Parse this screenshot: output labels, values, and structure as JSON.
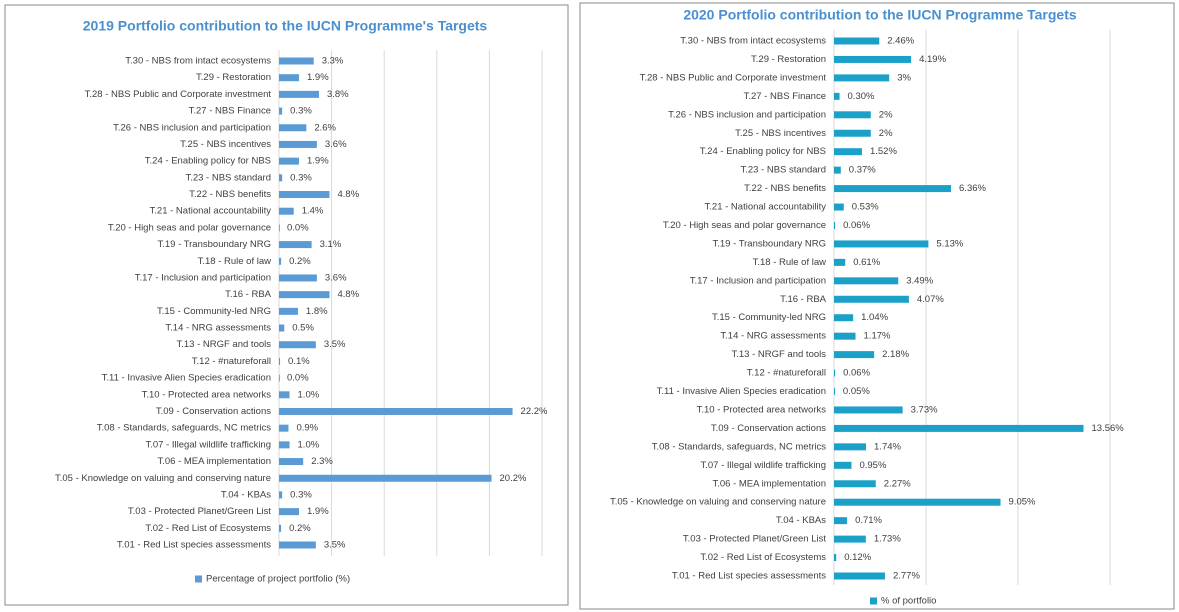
{
  "chart_data": [
    {
      "type": "bar",
      "orientation": "horizontal",
      "title": "2019 Portfolio contribution to the IUCN Programme's Targets",
      "categories": [
        "T.30 - NBS from intact ecosystems",
        "T.29 - Restoration",
        "T.28 - NBS Public and Corporate investment",
        "T.27 - NBS Finance",
        "T.26 - NBS inclusion and participation",
        "T.25 - NBS incentives",
        "T.24 - Enabling policy for NBS",
        "T.23 - NBS standard",
        "T.22 - NBS benefits",
        "T.21 - National accountability",
        "T.20 - High seas and polar governance",
        "T.19 - Transboundary NRG",
        "T.18 - Rule of law",
        "T.17 - Inclusion and participation",
        "T.16 - RBA",
        "T.15 - Community-led NRG",
        "T.14 - NRG assessments",
        "T.13 - NRGF and tools",
        "T.12 - #natureforall",
        "T.11 - Invasive Alien Species eradication",
        "T.10 - Protected area networks",
        "T.09 - Conservation actions",
        "T.08 - Standards, safeguards, NC metrics",
        "T.07 - Illegal wildlife trafficking",
        "T.06 - MEA implementation",
        "T.05 - Knowledge on valuing and conserving nature",
        "T.04 - KBAs",
        "T.03 - Protected Planet/Green List",
        "T.02 - Red List of Ecosystems",
        "T.01 - Red List species assessments"
      ],
      "series": [
        {
          "name": "Percentage of project portfolio (%)",
          "color": "#5b9bd5",
          "values": [
            3.3,
            1.9,
            3.8,
            0.3,
            2.6,
            3.6,
            1.9,
            0.3,
            4.8,
            1.4,
            0.0,
            3.1,
            0.2,
            3.6,
            4.8,
            1.8,
            0.5,
            3.5,
            0.1,
            0.0,
            1.0,
            22.2,
            0.9,
            1.0,
            2.3,
            20.2,
            0.3,
            1.9,
            0.2,
            3.5
          ],
          "value_labels": [
            "3.3%",
            "1.9%",
            "3.8%",
            "0.3%",
            "2.6%",
            "3.6%",
            "1.9%",
            "0.3%",
            "4.8%",
            "1.4%",
            "0.0%",
            "3.1%",
            "0.2%",
            "3.6%",
            "4.8%",
            "1.8%",
            "0.5%",
            "3.5%",
            "0.1%",
            "0.0%",
            "1.0%",
            "22.2%",
            "0.9%",
            "1.0%",
            "2.3%",
            "20.2%",
            "0.3%",
            "1.9%",
            "0.2%",
            "3.5%"
          ]
        }
      ],
      "xlim": [
        0,
        25
      ],
      "xticks": [
        0,
        5,
        10,
        15,
        20,
        25
      ],
      "grid": true,
      "legend": "bottom"
    },
    {
      "type": "bar",
      "orientation": "horizontal",
      "title": "2020 Portfolio contribution to the IUCN Programme Targets",
      "categories": [
        "T.30 - NBS from intact ecosystems",
        "T.29 - Restoration",
        "T.28 - NBS Public and Corporate investment",
        "T.27 - NBS Finance",
        "T.26 - NBS inclusion and participation",
        "T.25 - NBS incentives",
        "T.24 - Enabling policy for NBS",
        "T.23 - NBS standard",
        "T.22 - NBS benefits",
        "T.21 - National accountability",
        "T.20 - High seas and polar governance",
        "T.19 - Transboundary NRG",
        "T.18 - Rule of law",
        "T.17 - Inclusion and participation",
        "T.16 - RBA",
        "T.15 - Community-led NRG",
        "T.14 - NRG assessments",
        "T.13 - NRGF and tools",
        "T.12 - #natureforall",
        "T.11 - Invasive Alien Species eradication",
        "T.10 - Protected area networks",
        "T.09 - Conservation actions",
        "T.08 - Standards, safeguards, NC metrics",
        "T.07 - Illegal wildlife trafficking",
        "T.06 - MEA implementation",
        "T.05 - Knowledge on valuing and conserving nature",
        "T.04 - KBAs",
        "T.03 - Protected Planet/Green List",
        "T.02 - Red List of Ecosystems",
        "T.01 - Red List species assessments"
      ],
      "series": [
        {
          "name": "% of portfolio",
          "color": "#1ba1c8",
          "values": [
            2.46,
            4.19,
            3,
            0.3,
            2,
            2,
            1.52,
            0.37,
            6.36,
            0.53,
            0.06,
            5.13,
            0.61,
            3.49,
            4.07,
            1.04,
            1.17,
            2.18,
            0.06,
            0.05,
            3.73,
            13.56,
            1.74,
            0.95,
            2.27,
            9.05,
            0.71,
            1.73,
            0.12,
            2.77
          ],
          "value_labels": [
            "2.46%",
            "4.19%",
            "3%",
            "0.30%",
            "2%",
            "2%",
            "1.52%",
            "0.37%",
            "6.36%",
            "0.53%",
            "0.06%",
            "5.13%",
            "0.61%",
            "3.49%",
            "4.07%",
            "1.04%",
            "1.17%",
            "2.18%",
            "0.06%",
            "0.05%",
            "3.73%",
            "13.56%",
            "1.74%",
            "0.95%",
            "2.27%",
            "9.05%",
            "0.71%",
            "1.73%",
            "0.12%",
            "2.77%"
          ]
        }
      ],
      "xlim": [
        0,
        15
      ],
      "xticks": [
        0,
        5,
        10,
        15
      ],
      "grid": true,
      "legend": "bottom"
    }
  ]
}
